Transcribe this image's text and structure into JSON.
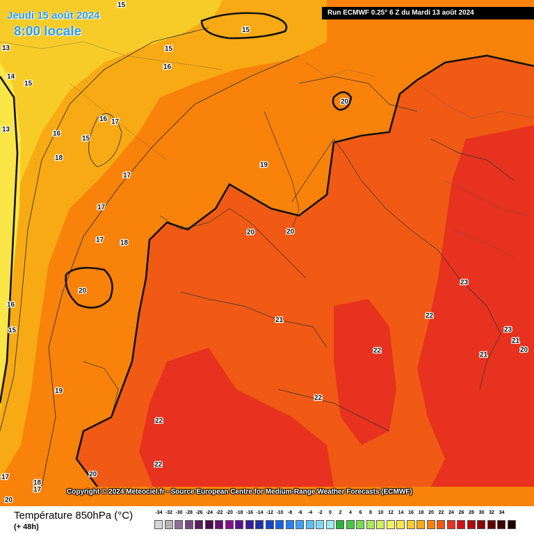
{
  "header": {
    "date": "Jeudi 15 août 2024",
    "local_time": "8:00 locale",
    "run_info": "Run ECMWF 0.25° 6 Z du Mardi 13 août 2024"
  },
  "copyright": "Copyright © 2024 Meteociel.fr - Source European Centre for Medium-Range Weather Forecasts (ECMWF)",
  "legend": {
    "title": "Température 850hPa (°C)",
    "subtitle": "(+ 48h)",
    "scale": [
      {
        "value": "-34",
        "color": "#d6d6d6"
      },
      {
        "value": "-32",
        "color": "#b4b4b4"
      },
      {
        "value": "-30",
        "color": "#8c6f9a"
      },
      {
        "value": "-28",
        "color": "#76497e"
      },
      {
        "value": "-26",
        "color": "#5a1f5f"
      },
      {
        "value": "-24",
        "color": "#4a0d48"
      },
      {
        "value": "-22",
        "color": "#6a0f6e"
      },
      {
        "value": "-20",
        "color": "#850f8e"
      },
      {
        "value": "-18",
        "color": "#5a1190"
      },
      {
        "value": "-16",
        "color": "#3a1a9e"
      },
      {
        "value": "-14",
        "color": "#1f2fa8"
      },
      {
        "value": "-12",
        "color": "#1546c8"
      },
      {
        "value": "-10",
        "color": "#1a5ee6"
      },
      {
        "value": "-8",
        "color": "#2a7ef2"
      },
      {
        "value": "-6",
        "color": "#3fa0f6"
      },
      {
        "value": "-4",
        "color": "#5cc0f6"
      },
      {
        "value": "-2",
        "color": "#80d8f2"
      },
      {
        "value": "0",
        "color": "#9ee8ee"
      },
      {
        "value": "2",
        "color": "#28b43c"
      },
      {
        "value": "4",
        "color": "#46c846"
      },
      {
        "value": "6",
        "color": "#78dc50"
      },
      {
        "value": "8",
        "color": "#a8e85a"
      },
      {
        "value": "10",
        "color": "#d2f05a"
      },
      {
        "value": "12",
        "color": "#f2f25a"
      },
      {
        "value": "14",
        "color": "#fae646"
      },
      {
        "value": "16",
        "color": "#f8cc28"
      },
      {
        "value": "18",
        "color": "#f8aa14"
      },
      {
        "value": "20",
        "color": "#f8820a"
      },
      {
        "value": "22",
        "color": "#f05a14"
      },
      {
        "value": "24",
        "color": "#e6321e"
      },
      {
        "value": "26",
        "color": "#d21414"
      },
      {
        "value": "28",
        "color": "#b40a0a"
      },
      {
        "value": "30",
        "color": "#8c0505"
      },
      {
        "value": "32",
        "color": "#640000"
      },
      {
        "value": "34",
        "color": "#3c0000"
      },
      {
        "value": "",
        "color": "#1e0000"
      }
    ]
  },
  "isotherm_labels": [
    "13",
    "13",
    "14",
    "15",
    "16",
    "18",
    "16",
    "17",
    "15",
    "17",
    "17",
    "17",
    "18",
    "20",
    "16",
    "15",
    "19",
    "15",
    "15",
    "15",
    "16",
    "19",
    "20",
    "20",
    "20",
    "21",
    "22",
    "22",
    "22",
    "22",
    "22",
    "23",
    "23",
    "21",
    "21",
    "20",
    "20",
    "20",
    "18",
    "17",
    "17"
  ]
}
